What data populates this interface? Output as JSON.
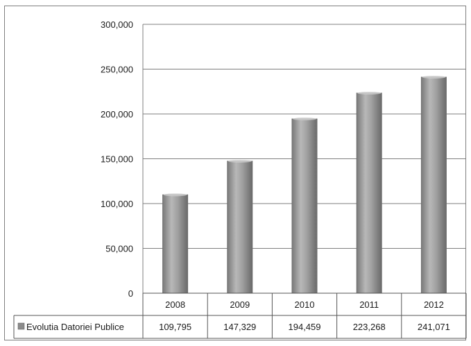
{
  "chart_data": {
    "type": "table",
    "categories": [
      "2008",
      "2009",
      "2010",
      "2011",
      "2012"
    ],
    "series": [
      {
        "name": "Evolutia Datoriei Publice",
        "values": [
          109795,
          147329,
          194459,
          223268,
          241071
        ],
        "value_labels": [
          "109,795",
          "147,329",
          "194,459",
          "223,268",
          "241,071"
        ]
      }
    ],
    "ylim": [
      0,
      300000
    ],
    "y_ticks": [
      0,
      50000,
      100000,
      150000,
      200000,
      250000,
      300000
    ],
    "y_tick_labels": [
      "0",
      "50,000",
      "100,000",
      "150,000",
      "200,000",
      "250,000",
      "300,000"
    ],
    "grid": true,
    "legend": "data-table-row",
    "colors": {
      "bar_fill": "#a6a6a6",
      "bar_dark": "#6e6e6e",
      "gridline": "#7f7f7f",
      "legend_key": "#8c8c8c"
    }
  }
}
